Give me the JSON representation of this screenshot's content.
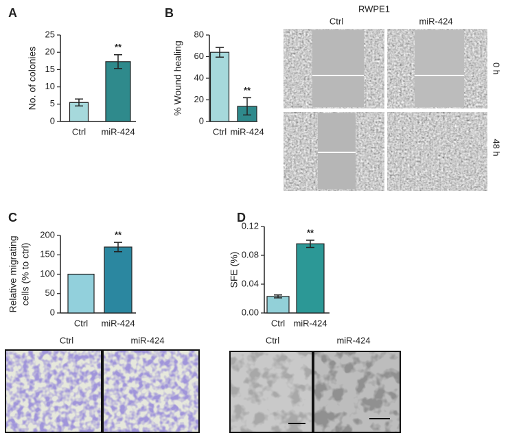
{
  "chart_data": [
    {
      "type": "bar",
      "panel": "A",
      "ylabel": [
        "No. of colonies"
      ],
      "categories": [
        "Ctrl",
        "miR-424"
      ],
      "values": [
        5.5,
        17.3
      ],
      "errors": [
        1.0,
        2.0
      ],
      "colors": [
        "#a6d9dc",
        "#2f8a8c"
      ],
      "significance": [
        null,
        "**"
      ],
      "ylim": [
        0,
        25
      ],
      "yticks": [
        0,
        5,
        10,
        15,
        20,
        25
      ]
    },
    {
      "type": "bar",
      "panel": "B",
      "ylabel": [
        "% Wound healing"
      ],
      "categories": [
        "Ctrl",
        "miR-424"
      ],
      "values": [
        64,
        14
      ],
      "errors": [
        4.5,
        8
      ],
      "colors": [
        "#a6d9dc",
        "#2f8a8c"
      ],
      "significance": [
        null,
        "**"
      ],
      "ylim": [
        0,
        80
      ],
      "yticks": [
        0,
        20,
        40,
        60,
        80
      ],
      "image_title": "RWPE1",
      "image_columns": [
        "Ctrl",
        "miR-424"
      ],
      "image_rows": [
        "0 h",
        "48 h"
      ]
    },
    {
      "type": "bar",
      "panel": "C",
      "ylabel": [
        "Relative migrating",
        "cells (% to ctrl)"
      ],
      "categories": [
        "Ctrl",
        "miR-424"
      ],
      "values": [
        100,
        170
      ],
      "errors": [
        0,
        12
      ],
      "colors": [
        "#92d0dc",
        "#2b87a0"
      ],
      "significance": [
        null,
        "**"
      ],
      "ylim": [
        0,
        200
      ],
      "yticks": [
        0,
        50,
        100,
        150,
        200
      ],
      "image_columns": [
        "Ctrl",
        "miR-424"
      ]
    },
    {
      "type": "bar",
      "panel": "D",
      "ylabel": [
        "SFE (%)"
      ],
      "categories": [
        "Ctrl",
        "miR-424"
      ],
      "values": [
        0.023,
        0.096
      ],
      "errors": [
        0.002,
        0.005
      ],
      "colors": [
        "#92d0d8",
        "#2c9896"
      ],
      "significance": [
        null,
        "**"
      ],
      "ylim": [
        0,
        0.12
      ],
      "yticks": [
        {
          "value": 0,
          "label": "0.00"
        },
        0.04,
        0.08,
        0.12
      ],
      "image_columns": [
        "Ctrl",
        "miR-424"
      ]
    }
  ]
}
